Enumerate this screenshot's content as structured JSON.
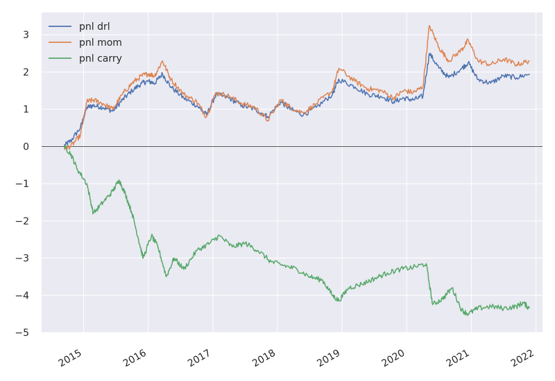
{
  "chart_data": {
    "type": "line",
    "title": "",
    "xlabel": "",
    "ylabel": "",
    "xlim": [
      2014.35,
      2022.1
    ],
    "ylim": [
      -5,
      3.6
    ],
    "grid": true,
    "background": "#eaeaf2",
    "gridline_color": "#ffffff",
    "zero_line": true,
    "legend_position": "upper-left",
    "x_ticks": [
      2015,
      2016,
      2017,
      2018,
      2019,
      2020,
      2021,
      2022
    ],
    "x_tick_labels": [
      "2015",
      "2016",
      "2017",
      "2018",
      "2019",
      "2020",
      "2021",
      "2022"
    ],
    "y_ticks": [
      -5,
      -4,
      -3,
      -2,
      -1,
      0,
      1,
      2,
      3
    ],
    "y_tick_labels": [
      "−5",
      "−4",
      "−3",
      "−2",
      "−1",
      "0",
      "1",
      "2",
      "3"
    ],
    "series": [
      {
        "name": "pnl drl",
        "color": "#4c72b0",
        "points": [
          [
            2014.7,
            0.02
          ],
          [
            2014.8,
            0.15
          ],
          [
            2014.95,
            0.5
          ],
          [
            2015.05,
            1.05
          ],
          [
            2015.15,
            1.1
          ],
          [
            2015.3,
            1.05
          ],
          [
            2015.45,
            0.95
          ],
          [
            2015.6,
            1.25
          ],
          [
            2015.75,
            1.5
          ],
          [
            2015.9,
            1.7
          ],
          [
            2016.0,
            1.75
          ],
          [
            2016.1,
            1.7
          ],
          [
            2016.22,
            1.95
          ],
          [
            2016.35,
            1.6
          ],
          [
            2016.55,
            1.3
          ],
          [
            2016.75,
            1.1
          ],
          [
            2016.9,
            0.85
          ],
          [
            2017.05,
            1.4
          ],
          [
            2017.25,
            1.3
          ],
          [
            2017.45,
            1.1
          ],
          [
            2017.65,
            1.0
          ],
          [
            2017.85,
            0.8
          ],
          [
            2018.05,
            1.2
          ],
          [
            2018.2,
            1.0
          ],
          [
            2018.4,
            0.85
          ],
          [
            2018.6,
            1.05
          ],
          [
            2018.85,
            1.4
          ],
          [
            2018.95,
            1.8
          ],
          [
            2019.2,
            1.6
          ],
          [
            2019.4,
            1.4
          ],
          [
            2019.6,
            1.35
          ],
          [
            2019.8,
            1.2
          ],
          [
            2019.95,
            1.3
          ],
          [
            2020.1,
            1.25
          ],
          [
            2020.25,
            1.35
          ],
          [
            2020.35,
            2.5
          ],
          [
            2020.5,
            2.1
          ],
          [
            2020.65,
            1.85
          ],
          [
            2020.85,
            2.1
          ],
          [
            2020.95,
            2.25
          ],
          [
            2021.1,
            1.8
          ],
          [
            2021.3,
            1.7
          ],
          [
            2021.5,
            1.9
          ],
          [
            2021.7,
            1.85
          ],
          [
            2021.9,
            1.95
          ]
        ]
      },
      {
        "name": "pnl mom",
        "color": "#dd8452",
        "points": [
          [
            2014.7,
            -0.05
          ],
          [
            2014.8,
            0.0
          ],
          [
            2014.95,
            0.3
          ],
          [
            2015.05,
            1.2
          ],
          [
            2015.15,
            1.25
          ],
          [
            2015.3,
            1.15
          ],
          [
            2015.45,
            1.0
          ],
          [
            2015.6,
            1.4
          ],
          [
            2015.75,
            1.7
          ],
          [
            2015.9,
            1.9
          ],
          [
            2016.0,
            1.95
          ],
          [
            2016.1,
            1.9
          ],
          [
            2016.22,
            2.3
          ],
          [
            2016.35,
            1.8
          ],
          [
            2016.55,
            1.4
          ],
          [
            2016.75,
            1.2
          ],
          [
            2016.9,
            0.8
          ],
          [
            2017.05,
            1.45
          ],
          [
            2017.25,
            1.35
          ],
          [
            2017.45,
            1.15
          ],
          [
            2017.65,
            1.05
          ],
          [
            2017.85,
            0.7
          ],
          [
            2018.05,
            1.25
          ],
          [
            2018.2,
            1.05
          ],
          [
            2018.4,
            0.9
          ],
          [
            2018.6,
            1.15
          ],
          [
            2018.85,
            1.5
          ],
          [
            2018.95,
            2.1
          ],
          [
            2019.2,
            1.75
          ],
          [
            2019.4,
            1.55
          ],
          [
            2019.6,
            1.5
          ],
          [
            2019.8,
            1.3
          ],
          [
            2019.95,
            1.5
          ],
          [
            2020.1,
            1.45
          ],
          [
            2020.25,
            1.6
          ],
          [
            2020.35,
            3.25
          ],
          [
            2020.5,
            2.65
          ],
          [
            2020.65,
            2.3
          ],
          [
            2020.85,
            2.6
          ],
          [
            2020.95,
            2.85
          ],
          [
            2021.1,
            2.3
          ],
          [
            2021.3,
            2.2
          ],
          [
            2021.5,
            2.35
          ],
          [
            2021.7,
            2.2
          ],
          [
            2021.9,
            2.3
          ]
        ]
      },
      {
        "name": "pnl carry",
        "color": "#55a868",
        "points": [
          [
            2014.7,
            0.0
          ],
          [
            2014.8,
            -0.2
          ],
          [
            2014.9,
            -0.6
          ],
          [
            2015.05,
            -1.0
          ],
          [
            2015.15,
            -1.8
          ],
          [
            2015.3,
            -1.5
          ],
          [
            2015.45,
            -1.2
          ],
          [
            2015.55,
            -0.9
          ],
          [
            2015.65,
            -1.3
          ],
          [
            2015.75,
            -1.8
          ],
          [
            2015.85,
            -2.5
          ],
          [
            2015.92,
            -3.0
          ],
          [
            2016.05,
            -2.4
          ],
          [
            2016.15,
            -2.7
          ],
          [
            2016.28,
            -3.5
          ],
          [
            2016.4,
            -3.0
          ],
          [
            2016.55,
            -3.3
          ],
          [
            2016.75,
            -2.8
          ],
          [
            2016.95,
            -2.6
          ],
          [
            2017.1,
            -2.4
          ],
          [
            2017.3,
            -2.7
          ],
          [
            2017.5,
            -2.6
          ],
          [
            2017.7,
            -2.8
          ],
          [
            2017.9,
            -3.1
          ],
          [
            2018.1,
            -3.2
          ],
          [
            2018.3,
            -3.3
          ],
          [
            2018.5,
            -3.5
          ],
          [
            2018.7,
            -3.6
          ],
          [
            2018.85,
            -4.0
          ],
          [
            2018.95,
            -4.15
          ],
          [
            2019.1,
            -3.8
          ],
          [
            2019.3,
            -3.7
          ],
          [
            2019.5,
            -3.55
          ],
          [
            2019.7,
            -3.4
          ],
          [
            2019.9,
            -3.3
          ],
          [
            2020.1,
            -3.25
          ],
          [
            2020.3,
            -3.15
          ],
          [
            2020.4,
            -4.25
          ],
          [
            2020.55,
            -4.1
          ],
          [
            2020.7,
            -3.8
          ],
          [
            2020.85,
            -4.4
          ],
          [
            2020.95,
            -4.5
          ],
          [
            2021.1,
            -4.35
          ],
          [
            2021.3,
            -4.3
          ],
          [
            2021.5,
            -4.35
          ],
          [
            2021.7,
            -4.3
          ],
          [
            2021.8,
            -4.2
          ],
          [
            2021.9,
            -4.35
          ]
        ]
      }
    ]
  }
}
